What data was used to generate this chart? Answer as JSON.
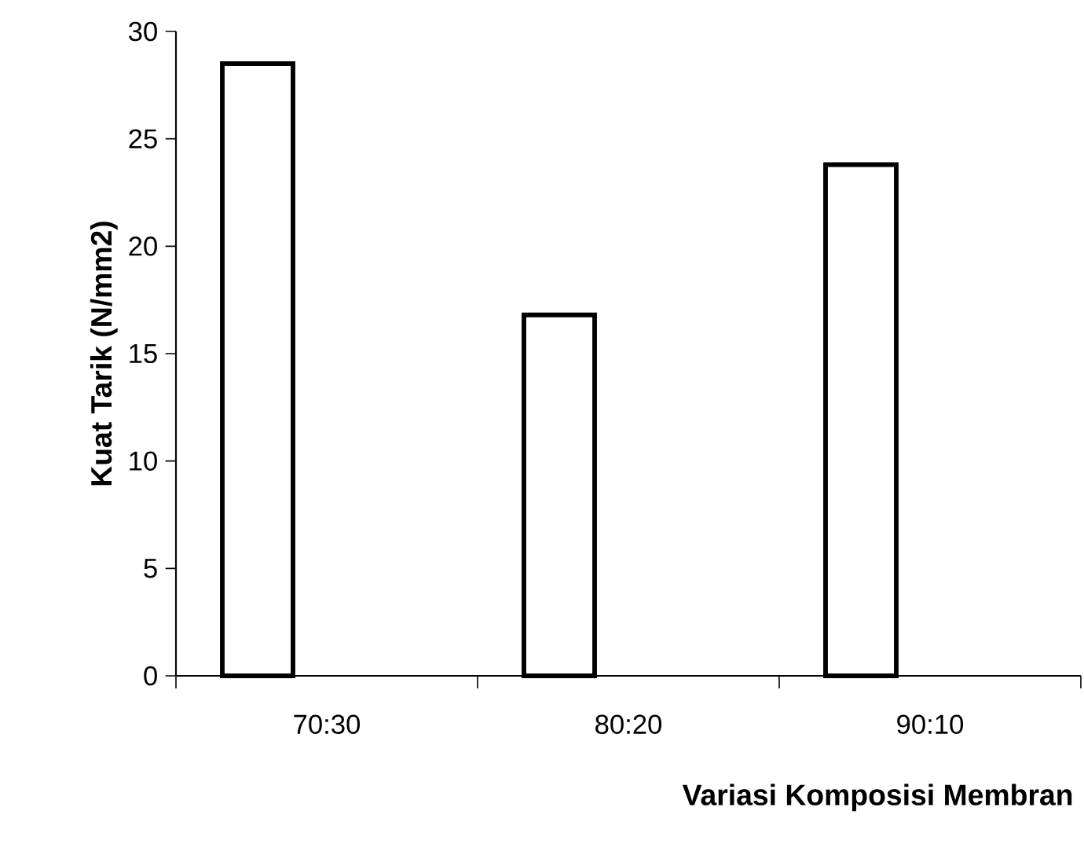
{
  "chart_data": {
    "type": "bar",
    "xlabel": "Variasi Komposisi Membran",
    "ylabel": "Kuat Tarik (N/mm2)",
    "categories": [
      "70:30",
      "80:20",
      "90:10"
    ],
    "values": [
      28.5,
      16.8,
      23.8
    ],
    "color": "#ffffff",
    "ylim": [
      0,
      30
    ],
    "yticks": [
      0,
      5,
      10,
      15,
      20,
      25,
      30
    ],
    "grid": false
  }
}
